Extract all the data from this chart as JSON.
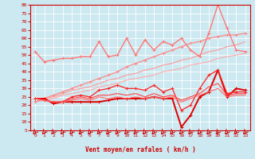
{
  "xlabel": "Vent moyen/en rafales ( km/h )",
  "background_color": "#cce8f0",
  "grid_color": "#ffffff",
  "xlim": [
    -0.5,
    23.5
  ],
  "ylim": [
    5,
    80
  ],
  "yticks": [
    5,
    10,
    15,
    20,
    25,
    30,
    35,
    40,
    45,
    50,
    55,
    60,
    65,
    70,
    75,
    80
  ],
  "xticks": [
    0,
    1,
    2,
    3,
    4,
    5,
    6,
    7,
    8,
    9,
    10,
    11,
    12,
    13,
    14,
    15,
    16,
    17,
    18,
    19,
    20,
    21,
    22,
    23
  ],
  "lines": [
    {
      "color": "#ffaaaa",
      "lw": 0.8,
      "marker": null,
      "ms": 0,
      "y": [
        22,
        23,
        24,
        26,
        27,
        28,
        29,
        31,
        32,
        33,
        35,
        36,
        37,
        38,
        40,
        41,
        42,
        44,
        45,
        46,
        48,
        49,
        50,
        51
      ]
    },
    {
      "color": "#ff9999",
      "lw": 0.8,
      "marker": null,
      "ms": 0,
      "y": [
        22,
        24,
        25,
        27,
        29,
        30,
        31,
        33,
        35,
        36,
        38,
        39,
        41,
        42,
        44,
        45,
        47,
        48,
        50,
        52,
        53,
        55,
        56,
        58
      ]
    },
    {
      "color": "#ff8888",
      "lw": 0.9,
      "marker": "+",
      "ms": 3,
      "y": [
        22,
        24,
        26,
        28,
        30,
        32,
        34,
        36,
        38,
        40,
        43,
        45,
        47,
        49,
        51,
        53,
        55,
        57,
        58,
        60,
        61,
        62,
        62,
        63
      ]
    },
    {
      "color": "#ff7777",
      "lw": 1.0,
      "marker": "+",
      "ms": 3,
      "y": [
        52,
        46,
        47,
        48,
        48,
        49,
        49,
        58,
        49,
        50,
        60,
        50,
        59,
        53,
        58,
        56,
        60,
        53,
        49,
        63,
        80,
        66,
        53,
        52
      ]
    },
    {
      "color": "#dd0000",
      "lw": 1.4,
      "marker": "+",
      "ms": 3,
      "y": [
        24,
        24,
        21,
        22,
        22,
        22,
        22,
        22,
        23,
        24,
        24,
        24,
        24,
        25,
        24,
        24,
        7,
        14,
        25,
        28,
        41,
        25,
        30,
        29
      ]
    },
    {
      "color": "#ff2222",
      "lw": 0.9,
      "marker": "+",
      "ms": 3,
      "y": [
        24,
        23,
        22,
        22,
        25,
        26,
        25,
        29,
        30,
        32,
        30,
        30,
        29,
        32,
        28,
        30,
        17,
        20,
        30,
        38,
        41,
        27,
        28,
        28
      ]
    },
    {
      "color": "#ff4444",
      "lw": 0.8,
      "marker": null,
      "ms": 0,
      "y": [
        24,
        23,
        22,
        22,
        24,
        25,
        24,
        26,
        26,
        27,
        26,
        27,
        25,
        27,
        25,
        26,
        23,
        25,
        27,
        31,
        33,
        26,
        27,
        27
      ]
    },
    {
      "color": "#ff6666",
      "lw": 0.8,
      "marker": null,
      "ms": 0,
      "y": [
        24,
        23,
        22,
        22,
        23,
        24,
        23,
        25,
        24,
        25,
        24,
        25,
        24,
        25,
        24,
        25,
        22,
        24,
        26,
        28,
        30,
        25,
        26,
        26
      ]
    }
  ]
}
